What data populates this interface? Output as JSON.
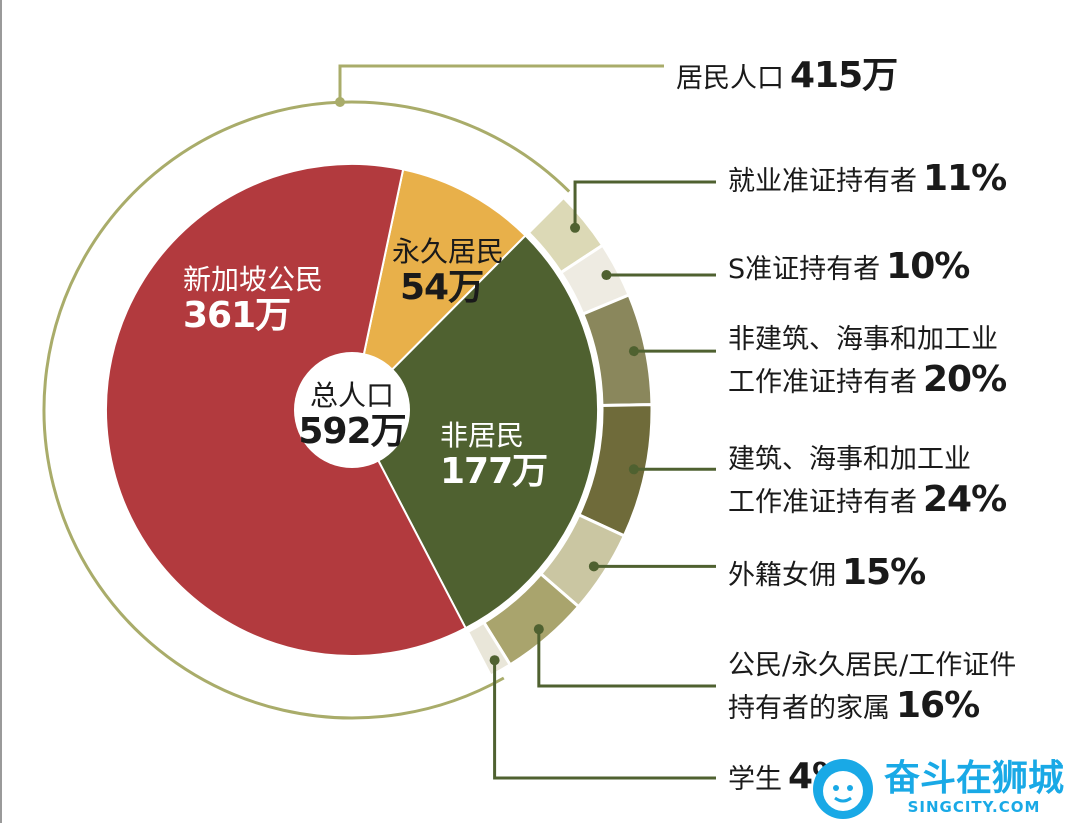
{
  "chart_data": {
    "type": "pie",
    "inner_ring": {
      "center_label": "总人口",
      "center_value": "592万",
      "total": 592,
      "slices": [
        {
          "name": "新加坡公民",
          "value": 361,
          "display": "361万",
          "color": "#b23a3e"
        },
        {
          "name": "永久居民",
          "value": 54,
          "display": "54万",
          "color": "#e8b04a"
        },
        {
          "name": "非居民",
          "value": 177,
          "display": "177万",
          "color": "#4f6130"
        }
      ]
    },
    "resident_arc": {
      "label": "居民人口",
      "value": 415,
      "display": "415万",
      "color": "#a9ac6a"
    },
    "non_resident_breakdown": [
      {
        "label_lines": [
          "就业准证持有者"
        ],
        "percent": 11,
        "display": "11%",
        "color": "#dcd9b6"
      },
      {
        "label_lines": [
          "S准证持有者"
        ],
        "percent": 10,
        "display": "10%",
        "color": "#eeebe2"
      },
      {
        "label_lines": [
          "非建筑、海事和加工业",
          "工作准证持有者"
        ],
        "percent": 20,
        "display": "20%",
        "color": "#8a875c"
      },
      {
        "label_lines": [
          "建筑、海事和加工业",
          "工作准证持有者"
        ],
        "percent": 24,
        "display": "24%",
        "color": "#6f6b3a"
      },
      {
        "label_lines": [
          "外籍女佣"
        ],
        "percent": 15,
        "display": "15%",
        "color": "#cac6a2"
      },
      {
        "label_lines": [
          "公民/永久居民/工作证件",
          "持有者的家属"
        ],
        "percent": 16,
        "display": "16%",
        "color": "#a9a46d"
      },
      {
        "label_lines": [
          "学生"
        ],
        "percent": 4,
        "display": "4%",
        "color": "#e9e6d9"
      }
    ],
    "leader_color": "#4f6130"
  },
  "watermark": {
    "name": "奋斗在狮城",
    "site": "SINGCITY.COM",
    "color": "#19a9e6"
  }
}
